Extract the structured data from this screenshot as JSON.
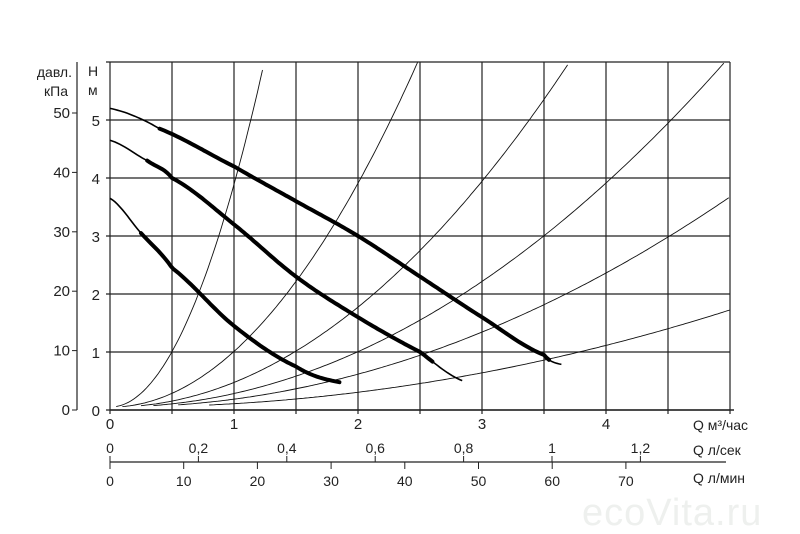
{
  "chart_data": {
    "type": "line",
    "xlabel": "Q  м³/час",
    "xlim": [
      0,
      5
    ],
    "ylim": [
      0,
      6
    ],
    "y_ticks": [
      0,
      1,
      2,
      3,
      4,
      5
    ],
    "x_ticks": [
      0,
      1,
      2,
      3,
      4
    ],
    "grid": true,
    "ylabel_m": [
      "H",
      "м"
    ],
    "ylabel_kpa": [
      "давл.",
      "кПа"
    ],
    "kpa_ticks": [
      0,
      10,
      20,
      30,
      40,
      50
    ],
    "ls_label": "Q  л/сек",
    "ls_ticks": [
      "0",
      "0,2",
      "0,4",
      "0,6",
      "0,8",
      "1",
      "1,2"
    ],
    "lmin_label": "Q  л/мин",
    "lmin_ticks": [
      0,
      10,
      20,
      30,
      40,
      50,
      60,
      70
    ],
    "pump_curves": [
      {
        "points": [
          [
            0,
            5.2
          ],
          [
            0.4,
            4.85
          ],
          [
            1,
            4.2
          ],
          [
            1.5,
            3.6
          ],
          [
            2,
            3.0
          ],
          [
            2.5,
            2.3
          ],
          [
            3,
            1.6
          ],
          [
            3.5,
            0.95
          ],
          [
            3.65,
            0.78
          ]
        ],
        "thick": [
          0.4,
          3.55
        ]
      },
      {
        "points": [
          [
            0,
            4.65
          ],
          [
            0.3,
            4.3
          ],
          [
            0.5,
            4.0
          ],
          [
            1,
            3.2
          ],
          [
            1.5,
            2.3
          ],
          [
            2,
            1.6
          ],
          [
            2.5,
            1.0
          ],
          [
            2.85,
            0.5
          ]
        ],
        "thick": [
          0.3,
          2.6
        ]
      },
      {
        "points": [
          [
            0,
            3.65
          ],
          [
            0.25,
            3.05
          ],
          [
            0.5,
            2.45
          ],
          [
            1,
            1.45
          ],
          [
            1.5,
            0.75
          ],
          [
            1.85,
            0.48
          ]
        ],
        "thick": [
          0.25,
          1.85
        ]
      }
    ],
    "system_curves_k": [
      3.85,
      0.97,
      0.436,
      0.244,
      0.147,
      0.069
    ],
    "colors": {
      "curve": "#000000",
      "grid": "#222222"
    }
  },
  "watermark": "ecoVita.ru"
}
